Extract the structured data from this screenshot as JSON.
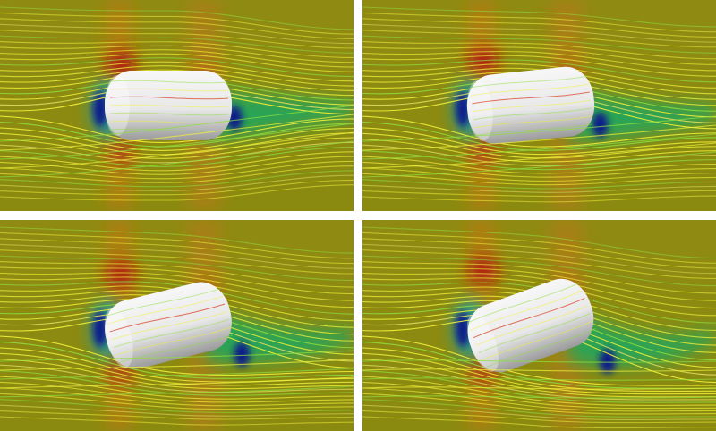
{
  "figure": {
    "panels": [
      {
        "id": "p0",
        "tilt_deg": 0
      },
      {
        "id": "p1",
        "tilt_deg": -6
      },
      {
        "id": "p2",
        "tilt_deg": -14
      },
      {
        "id": "p3",
        "tilt_deg": -20
      }
    ],
    "colors": {
      "background": "#8a8a10",
      "high_pressure": "#b01010",
      "low_pressure": "#0a1a8a",
      "wake": "#1aa860",
      "streamline_yellow": "#f2f23a",
      "streamline_green": "#8fe040",
      "streamline_red": "#d83a1a",
      "body": "#e8e8e8"
    }
  }
}
